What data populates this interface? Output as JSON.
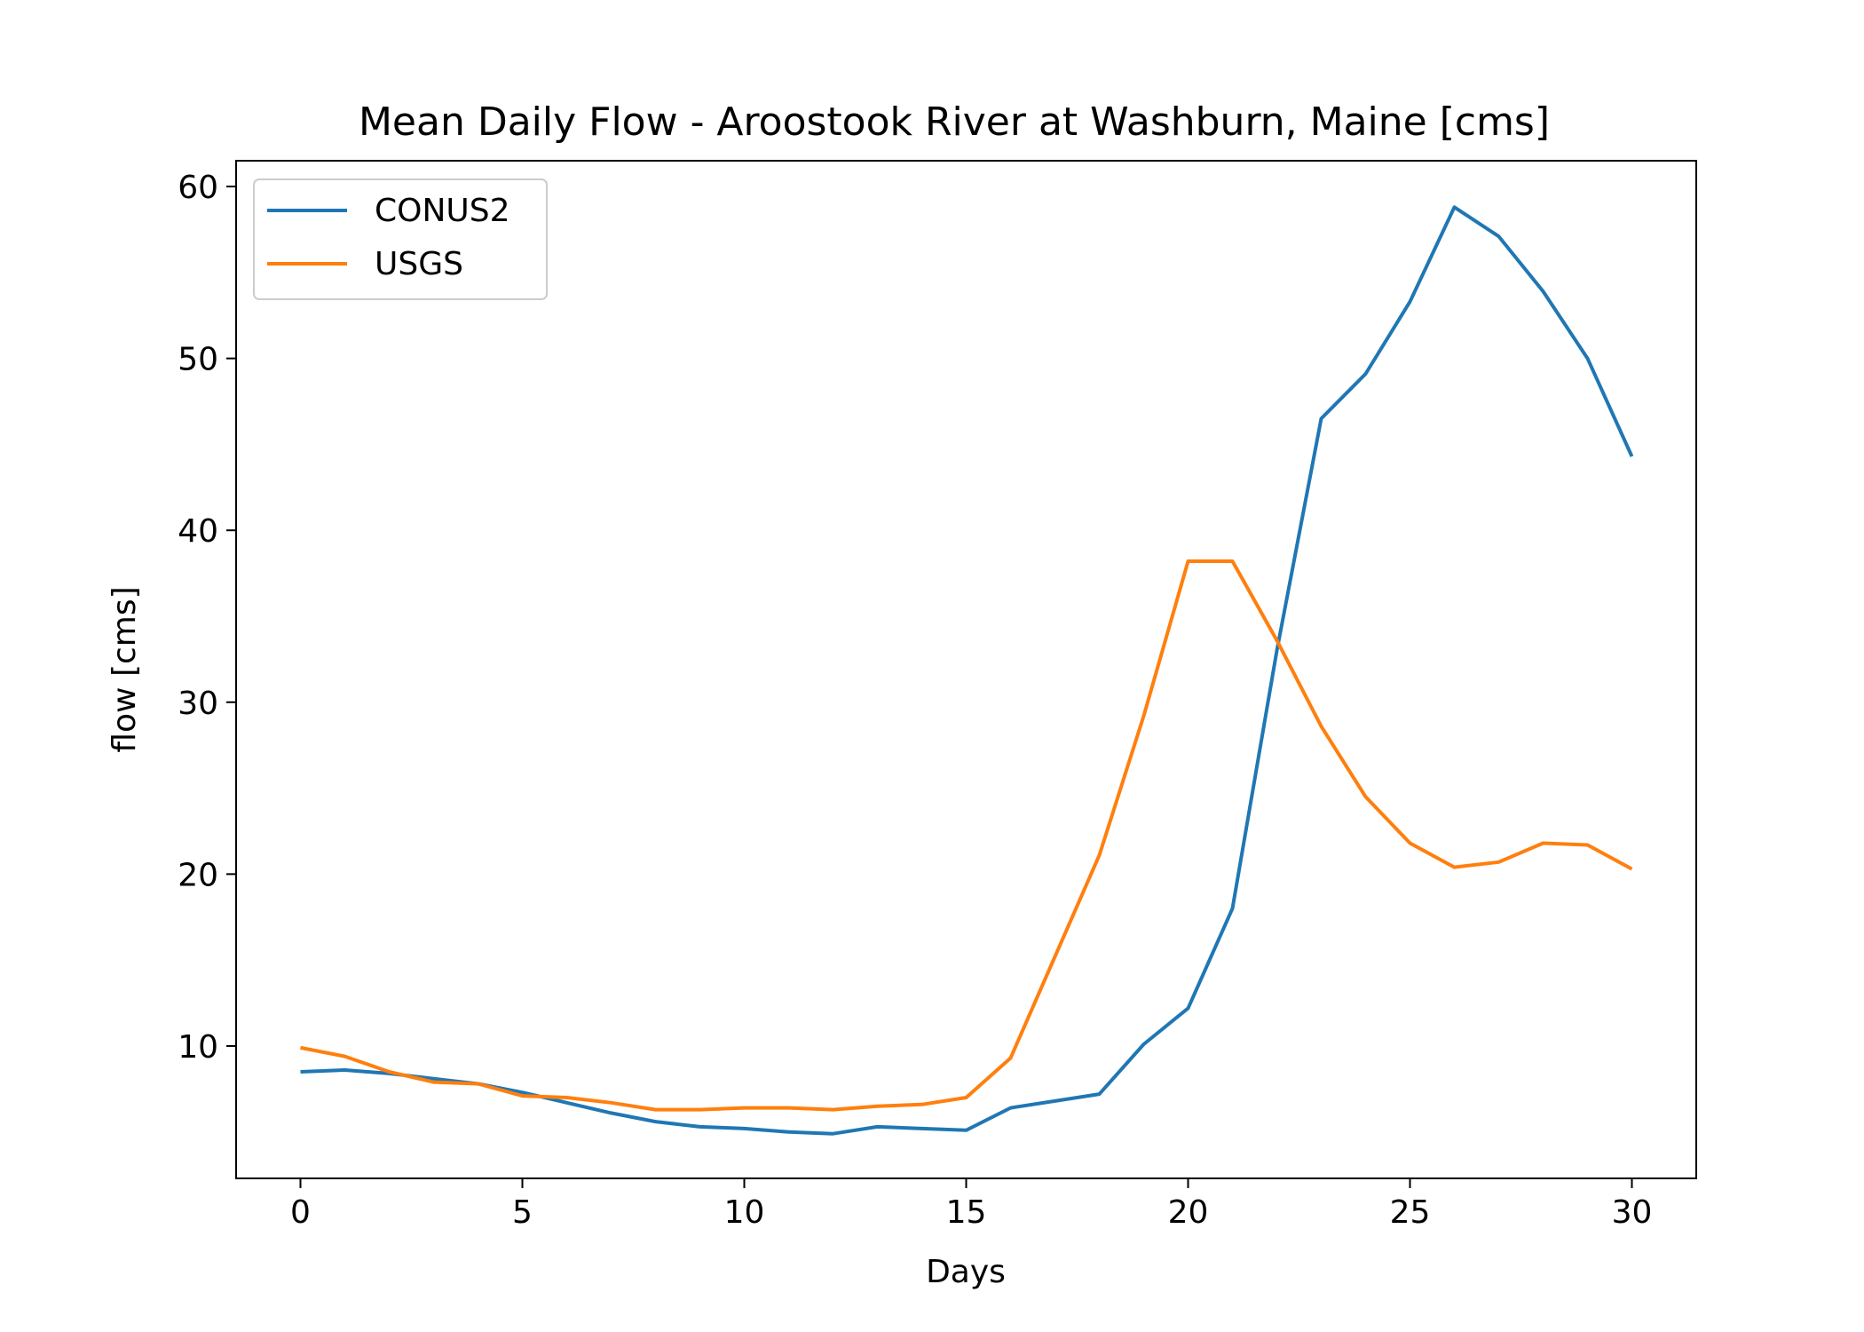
{
  "chart_data": {
    "type": "line",
    "title": "Mean Daily Flow - Aroostook River at Washburn, Maine [cms]",
    "xlabel": "Days",
    "ylabel": "flow [cms]",
    "xlim": [
      -1.45,
      31.45
    ],
    "ylim": [
      2.3,
      61.5
    ],
    "xticks": [
      0,
      5,
      10,
      15,
      20,
      25,
      30
    ],
    "yticks": [
      10,
      20,
      30,
      40,
      50,
      60
    ],
    "grid": false,
    "legend_position": "upper-left",
    "x": [
      0,
      1,
      2,
      3,
      4,
      5,
      6,
      7,
      8,
      9,
      10,
      11,
      12,
      13,
      14,
      15,
      16,
      17,
      18,
      19,
      20,
      21,
      22,
      23,
      24,
      25,
      26,
      27,
      28,
      29,
      30
    ],
    "series": [
      {
        "name": "CONUS2",
        "color": "#1f77b4",
        "values": [
          8.5,
          8.6,
          8.4,
          8.1,
          7.8,
          7.3,
          6.7,
          6.1,
          5.6,
          5.3,
          5.2,
          5.0,
          4.9,
          5.3,
          5.2,
          5.1,
          6.4,
          6.8,
          7.2,
          10.1,
          12.2,
          18.0,
          33.0,
          46.5,
          49.1,
          53.3,
          58.8,
          57.1,
          53.9,
          50.0,
          44.3
        ]
      },
      {
        "name": "USGS",
        "color": "#ff7f0e",
        "values": [
          9.9,
          9.4,
          8.5,
          7.9,
          7.8,
          7.1,
          7.0,
          6.7,
          6.3,
          6.3,
          6.4,
          6.4,
          6.3,
          6.5,
          6.6,
          7.0,
          9.3,
          15.2,
          21.1,
          29.2,
          38.2,
          38.2,
          33.6,
          28.6,
          24.5,
          21.8,
          20.4,
          20.7,
          21.8,
          21.7,
          20.3
        ]
      }
    ]
  }
}
